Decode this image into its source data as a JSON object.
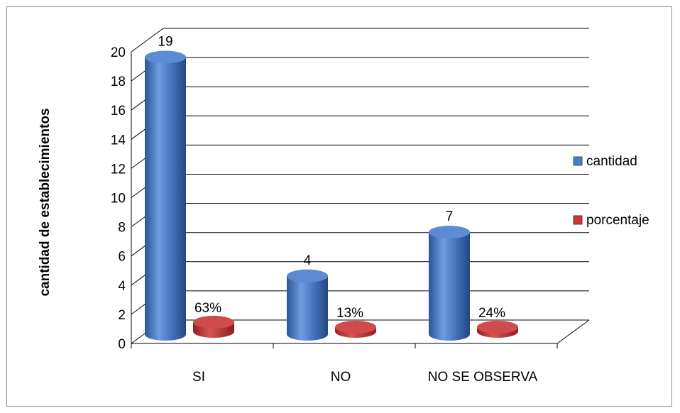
{
  "chart_data": {
    "type": "bar",
    "style": "3d-cylinder",
    "categories": [
      "SI",
      "NO",
      "NO SE OBSERVA"
    ],
    "series": [
      {
        "name": "cantidad",
        "values": [
          19,
          4,
          7
        ],
        "labels": [
          "19",
          "4",
          "7"
        ],
        "color": "#4a7cc4"
      },
      {
        "name": "porcentaje",
        "values": [
          0.63,
          0.13,
          0.24
        ],
        "labels": [
          "63%",
          "13%",
          "24%"
        ],
        "color": "#c0393b"
      }
    ],
    "ylabel": "cantidad de establecimientos",
    "xlabel": "",
    "ylim": [
      0,
      20
    ],
    "yticks": [
      0,
      2,
      4,
      6,
      8,
      10,
      12,
      14,
      16,
      18,
      20
    ],
    "grid": true,
    "legend": "right"
  }
}
